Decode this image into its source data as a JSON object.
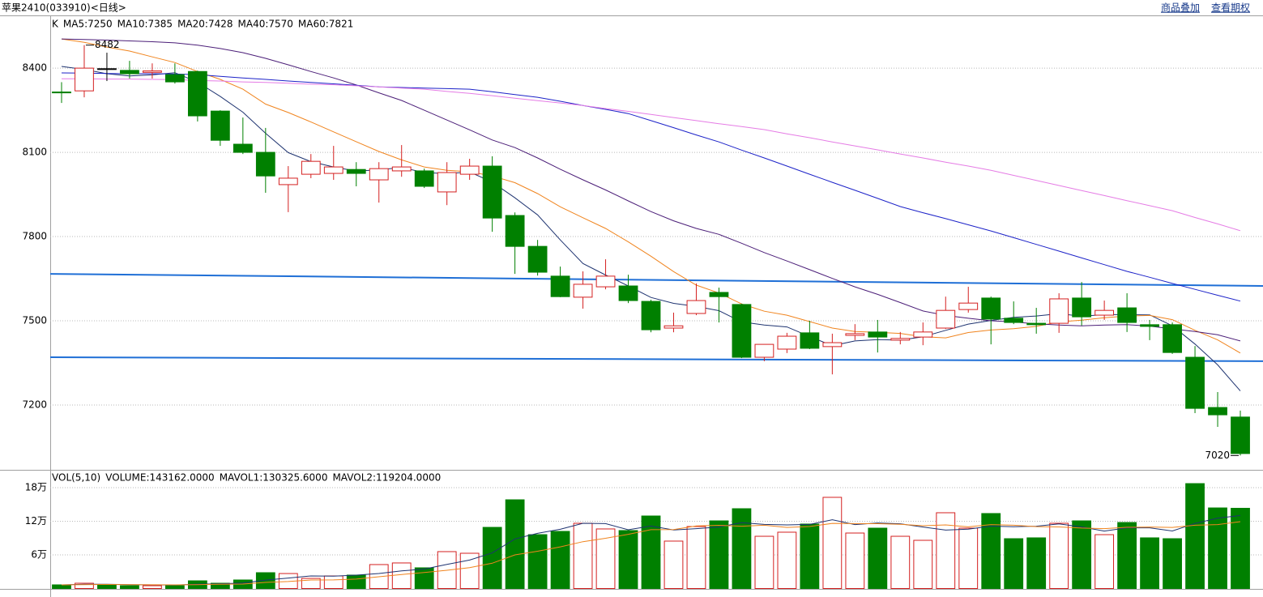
{
  "header": {
    "title": "苹果2410(033910)<日线>",
    "links": [
      "商品叠加",
      "查看期权"
    ]
  },
  "chart_data": [
    {
      "type": "candlestick",
      "label": "K",
      "colors": {
        "up": "#d42020",
        "down": "#008000"
      },
      "open": [
        8315,
        8319,
        8398,
        8392,
        8385,
        8377,
        8388,
        8247,
        8129,
        8100,
        7985,
        8022,
        8025,
        8039,
        8002,
        8034,
        8034,
        7959,
        8022,
        8051,
        7875,
        7765,
        7659,
        7584,
        7621,
        7624,
        7569,
        7474,
        7526,
        7601,
        7558,
        7370,
        7399,
        7457,
        7408,
        7448,
        7460,
        7431,
        7442,
        7474,
        7540,
        7581,
        7509,
        7491,
        7491,
        7581,
        7520,
        7546,
        7486,
        7486,
        7370,
        7191,
        7157
      ],
      "high": [
        8350,
        8482,
        8455,
        8426,
        8417,
        8417,
        8391,
        8250,
        8224,
        8187,
        8051,
        8094,
        8123,
        8065,
        8065,
        8126,
        8042,
        8065,
        8077,
        8086,
        7886,
        7788,
        7693,
        7676,
        7719,
        7664,
        7575,
        7529,
        7633,
        7618,
        7561,
        7416,
        7457,
        7500,
        7454,
        7488,
        7503,
        7460,
        7494,
        7586,
        7621,
        7586,
        7569,
        7546,
        7598,
        7638,
        7572,
        7598,
        7503,
        7494,
        7410,
        7246,
        7180
      ],
      "low": [
        8276,
        8296,
        8354,
        8363,
        8363,
        8345,
        8210,
        8123,
        8094,
        7956,
        7887,
        8008,
        8002,
        7979,
        7921,
        8013,
        7973,
        7912,
        8002,
        7817,
        7667,
        7661,
        7584,
        7543,
        7612,
        7563,
        7459,
        7459,
        7520,
        7494,
        7367,
        7356,
        7385,
        7399,
        7309,
        7431,
        7387,
        7416,
        7413,
        7471,
        7529,
        7416,
        7488,
        7454,
        7457,
        7483,
        7503,
        7460,
        7431,
        7382,
        7171,
        7122,
        7020
      ],
      "close": [
        8312,
        8400,
        8398,
        8380,
        8390,
        8351,
        8230,
        8143,
        8100,
        8016,
        8008,
        8068,
        8048,
        8025,
        8042,
        8048,
        7979,
        8028,
        8051,
        7866,
        7765,
        7673,
        7586,
        7630,
        7659,
        7572,
        7468,
        7482,
        7572,
        7586,
        7370,
        7416,
        7445,
        7402,
        7422,
        7454,
        7442,
        7437,
        7460,
        7537,
        7563,
        7506,
        7494,
        7486,
        7578,
        7514,
        7537,
        7494,
        7480,
        7387,
        7188,
        7165,
        7027
      ],
      "high_label": "8482",
      "low_label": "7020",
      "series": [
        {
          "name": "MA5:7250",
          "color": "#1e3370",
          "values": [
            8406,
            8395,
            8380,
            8372,
            8376,
            8384,
            8350,
            8299,
            8243,
            8168,
            8099,
            8067,
            8048,
            8033,
            8038,
            8046,
            8028,
            8024,
            8030,
            7994,
            7938,
            7877,
            7788,
            7704,
            7663,
            7624,
            7583,
            7562,
            7551,
            7536,
            7496,
            7485,
            7478,
            7444,
            7411,
            7428,
            7433,
            7431,
            7443,
            7466,
            7488,
            7501,
            7512,
            7517,
            7525,
            7516,
            7522,
            7522,
            7521,
            7482,
            7417,
            7343,
            7250
          ]
        },
        {
          "name": "MA10:7385",
          "color": "#f0841e",
          "values": [
            8504,
            8492,
            8475,
            8461,
            8440,
            8420,
            8388,
            8360,
            8325,
            8272,
            8242,
            8208,
            8173,
            8138,
            8103,
            8073,
            8048,
            8036,
            8031,
            8016,
            7992,
            7953,
            7906,
            7867,
            7829,
            7781,
            7730,
            7675,
            7627,
            7599,
            7560,
            7534,
            7520,
            7497,
            7474,
            7462,
            7459,
            7455,
            7443,
            7439,
            7458,
            7467,
            7472,
            7480,
            7496,
            7502,
            7511,
            7517,
            7519,
            7504,
            7466,
            7432,
            7385
          ]
        },
        {
          "name": "MA20:7428",
          "color": "#4b1e78",
          "values": [
            8504,
            8502,
            8500,
            8497,
            8494,
            8490,
            8482,
            8470,
            8455,
            8435,
            8412,
            8388,
            8365,
            8340,
            8312,
            8285,
            8250,
            8215,
            8180,
            8144,
            8117,
            8080,
            8040,
            8002,
            7966,
            7927,
            7889,
            7856,
            7829,
            7808,
            7776,
            7743,
            7713,
            7682,
            7651,
            7621,
            7594,
            7565,
            7535,
            7519,
            7509,
            7500,
            7496,
            7489,
            7485,
            7482,
            7485,
            7486,
            7481,
            7471,
            7462,
            7450,
            7428
          ]
        },
        {
          "name": "MA40:7570",
          "color": "#1c22c8",
          "values": [
            8383,
            8382,
            8381,
            8380,
            8380,
            8379,
            8377,
            8371,
            8365,
            8360,
            8354,
            8349,
            8344,
            8339,
            8333,
            8331,
            8329,
            8327,
            8325,
            8316,
            8306,
            8296,
            8282,
            8267,
            8253,
            8238,
            8213,
            8188,
            8162,
            8137,
            8108,
            8080,
            8051,
            8022,
            7993,
            7965,
            7936,
            7907,
            7885,
            7864,
            7842,
            7820,
            7796,
            7772,
            7748,
            7724,
            7700,
            7676,
            7655,
            7633,
            7612,
            7591,
            7570
          ]
        },
        {
          "name": "MA60:7821",
          "color": "#e57ce5",
          "values": [
            8362,
            8362,
            8361,
            8361,
            8360,
            8359,
            8356,
            8354,
            8351,
            8349,
            8346,
            8343,
            8341,
            8337,
            8333,
            8329,
            8325,
            8317,
            8310,
            8302,
            8293,
            8284,
            8276,
            8267,
            8256,
            8246,
            8235,
            8224,
            8213,
            8202,
            8192,
            8181,
            8166,
            8152,
            8137,
            8123,
            8109,
            8094,
            8080,
            8065,
            8051,
            8036,
            8018,
            8000,
            7982,
            7964,
            7946,
            7928,
            7910,
            7892,
            7868,
            7845,
            7821
          ]
        }
      ],
      "lines": [
        {
          "color": "#1f6fd6",
          "values": [
            7667,
            7624
          ]
        },
        {
          "color": "#1f6fd6",
          "values": [
            7370,
            7356
          ]
        }
      ],
      "ylim": [
        6969,
        8585
      ],
      "yticks": [
        7200,
        7500,
        7800,
        8100,
        8400
      ],
      "grid": true
    },
    {
      "type": "bar",
      "title": "VOL(5,10)",
      "series": [
        {
          "name": "VOLUME:143162.0000",
          "color": "#000000",
          "values": [
            6500,
            9400,
            6500,
            5000,
            5000,
            5000,
            13700,
            9400,
            15200,
            28200,
            26700,
            18000,
            22400,
            23900,
            42700,
            45600,
            36900,
            65800,
            62900,
            109100,
            158300,
            96100,
            101900,
            116400,
            106300,
            103400,
            129400,
            84600,
            110600,
            120700,
            142400,
            93200,
            100500,
            115000,
            162700,
            99000,
            107700,
            93200,
            86000,
            135200,
            107700,
            133800,
            88900,
            90400,
            116400,
            120700,
            96100,
            117800,
            90400,
            88900,
            187200,
            143800,
            143162
          ]
        },
        {
          "name": "MAVOL1:130325.6000",
          "color": "#1e3370",
          "values": [
            6500,
            7500,
            7500,
            7000,
            6480,
            6180,
            7820,
            8420,
            9660,
            15100,
            18680,
            22400,
            22100,
            23840,
            26740,
            31420,
            34700,
            43000,
            50780,
            63420,
            88540,
            98440,
            105660,
            116400,
            115800,
            104820,
            111480,
            104420,
            106840,
            109700,
            117540,
            114300,
            113480,
            114360,
            122760,
            114080,
            116980,
            115520,
            109720,
            104220,
            105960,
            111280,
            110320,
            111200,
            115400,
            109860,
            102500,
            108300,
            108280,
            102680,
            116080,
            125620,
            130325.6
          ]
        },
        {
          "name": "MAVOL2:119204.0000",
          "color": "#f0841e",
          "values": [
            6500,
            7000,
            7200,
            7000,
            6600,
            6500,
            7000,
            7500,
            8000,
            10800,
            12430,
            15110,
            15260,
            16750,
            20920,
            25050,
            28550,
            32550,
            37310,
            45080,
            59980,
            66570,
            74330,
            83590,
            89610,
            96680,
            104960,
            105040,
            111620,
            112750,
            111180,
            112890,
            108950,
            110600,
            116230,
            115810,
            115640,
            114500,
            112040,
            113490,
            110020,
            114130,
            112920,
            110460,
            109810,
            107910,
            106890,
            109310,
            109740,
            109040,
            112970,
            114060,
            119204
          ]
        }
      ],
      "ylim": [
        0,
        211800
      ],
      "yticks": [
        {
          "value": 60000,
          "label": "6万"
        },
        {
          "value": 120000,
          "label": "12万"
        },
        {
          "value": 180000,
          "label": "18万"
        }
      ],
      "grid": true
    }
  ]
}
